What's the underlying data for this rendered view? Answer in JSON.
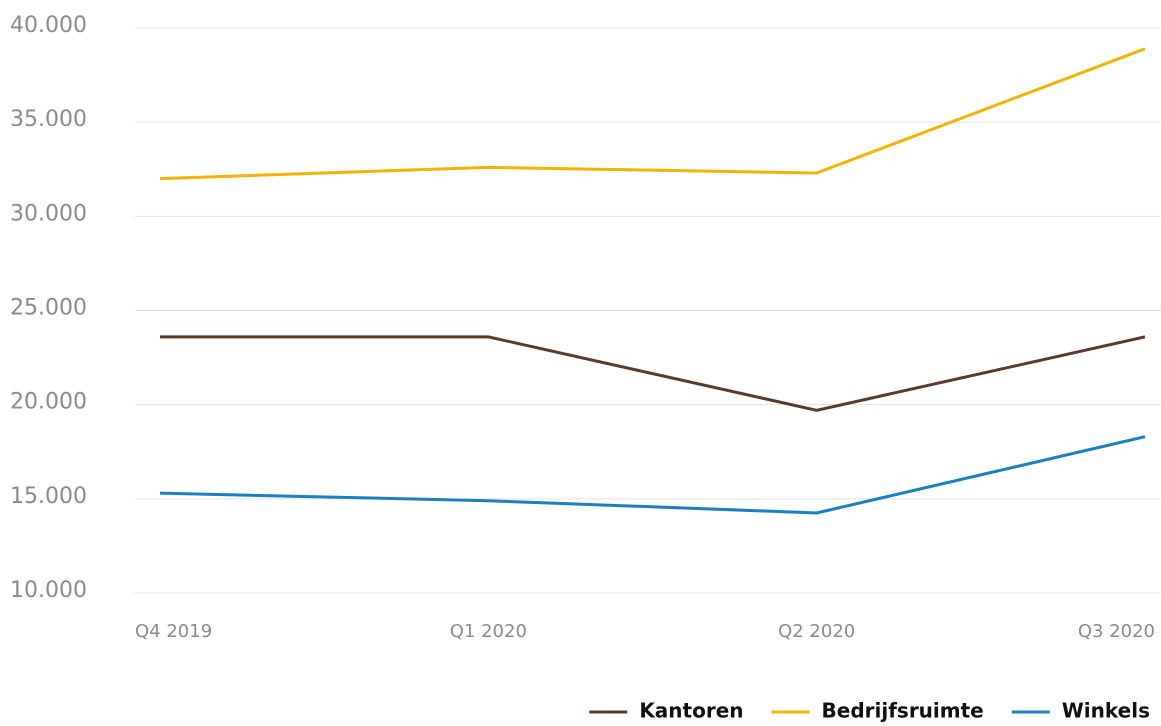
{
  "chart_data": {
    "type": "line",
    "categories": [
      "Q4 2019",
      "Q1 2020",
      "Q2 2020",
      "Q3 2020"
    ],
    "series": [
      {
        "name": "Kantoren",
        "color": "#5b3a2e",
        "values": [
          23600,
          23600,
          19700,
          23600
        ]
      },
      {
        "name": "Bedrijfsruimte",
        "color": "#f5b300",
        "values": [
          32000,
          32600,
          32300,
          38900
        ]
      },
      {
        "name": "Winkels",
        "color": "#1b7fc3",
        "values": [
          15300,
          14900,
          14250,
          18300
        ]
      }
    ],
    "ylim": [
      10000,
      40000
    ],
    "yticks": [
      {
        "value": 10000,
        "label": "10.000"
      },
      {
        "value": 15000,
        "label": "15.000"
      },
      {
        "value": 20000,
        "label": "20.000"
      },
      {
        "value": 25000,
        "label": "25.000"
      },
      {
        "value": 30000,
        "label": "30.000"
      },
      {
        "value": 35000,
        "label": "35.000"
      },
      {
        "value": 40000,
        "label": "40.000"
      }
    ],
    "grid": true,
    "legend": "bottom-right"
  }
}
